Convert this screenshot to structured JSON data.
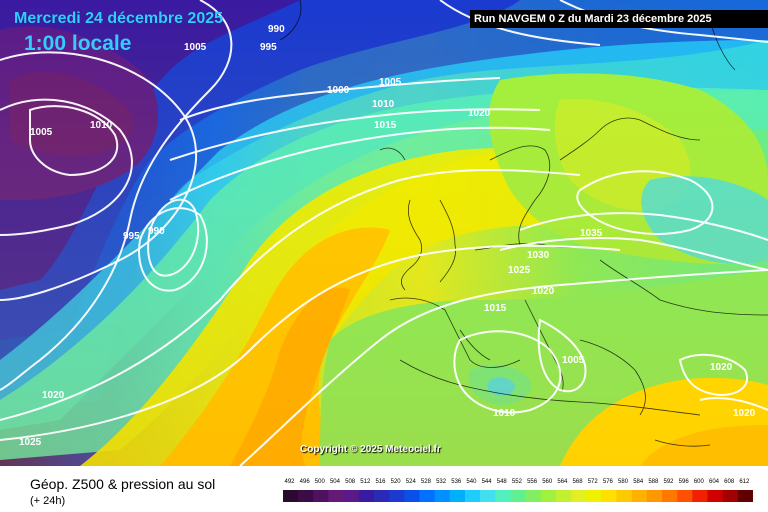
{
  "header": {
    "date": "Mercredi 24 décembre 2025",
    "local_time": "1:00 locale",
    "run": "Run NAVGEM 0 Z du Mardi 23 décembre 2025"
  },
  "map": {
    "copyright": "Copyright © 2025 Meteociel.fr",
    "isobar_labels": [
      {
        "name": "isobar-label-990-north",
        "text": "990"
      },
      {
        "name": "isobar-label-995-north",
        "text": "995"
      },
      {
        "name": "isobar-label-1005-north",
        "text": "1005"
      },
      {
        "name": "isobar-label-1005-greenland",
        "text": "1005"
      },
      {
        "name": "isobar-label-1010-greenland",
        "text": "1010"
      },
      {
        "name": "isobar-label-1000-atlantic",
        "text": "1000"
      },
      {
        "name": "isobar-label-1005-atlantic",
        "text": "1005"
      },
      {
        "name": "isobar-label-1010-atlantic",
        "text": "1010"
      },
      {
        "name": "isobar-label-1015-atlantic",
        "text": "1015"
      },
      {
        "name": "isobar-label-1020-norway",
        "text": "1020"
      },
      {
        "name": "isobar-label-995-low",
        "text": "995"
      },
      {
        "name": "isobar-label-990-low",
        "text": "990"
      },
      {
        "name": "isobar-label-1035-baltic",
        "text": "1035"
      },
      {
        "name": "isobar-label-1030-germany",
        "text": "1030"
      },
      {
        "name": "isobar-label-1025-france",
        "text": "1025"
      },
      {
        "name": "isobar-label-1020-alps",
        "text": "1020"
      },
      {
        "name": "isobar-label-1015-biscay",
        "text": "1015"
      },
      {
        "name": "isobar-label-1005-italy",
        "text": "1005"
      },
      {
        "name": "isobar-label-1010-africa",
        "text": "1010"
      },
      {
        "name": "isobar-label-1020-turkey",
        "text": "1020"
      },
      {
        "name": "isobar-label-1020-east",
        "text": "1020"
      },
      {
        "name": "isobar-label-1020-west",
        "text": "1020"
      },
      {
        "name": "isobar-label-1025-west",
        "text": "1025"
      }
    ]
  },
  "footer": {
    "title": "Géop. Z500 & pression au sol",
    "subtitle": "(+ 24h)",
    "scale_labels": [
      "492",
      "496",
      "500",
      "504",
      "508",
      "512",
      "516",
      "520",
      "524",
      "528",
      "532",
      "536",
      "540",
      "544",
      "548",
      "552",
      "556",
      "560",
      "564",
      "568",
      "572",
      "576",
      "580",
      "584",
      "588",
      "592",
      "596",
      "600",
      "604",
      "608",
      "612"
    ],
    "scale_colors": [
      "#2a0a2e",
      "#3d0c48",
      "#521060",
      "#661a78",
      "#5a1a8a",
      "#3a1aa0",
      "#2a2ab8",
      "#1a3ad0",
      "#0a50e8",
      "#0070ff",
      "#0090ff",
      "#00b0ff",
      "#20ccff",
      "#40e0f0",
      "#50f0c0",
      "#60f090",
      "#80f060",
      "#a0f040",
      "#c0f030",
      "#e0f020",
      "#f0f000",
      "#ffe000",
      "#ffc800",
      "#ffb000",
      "#ff9800",
      "#ff7800",
      "#ff5000",
      "#f02000",
      "#d00000",
      "#a00000",
      "#600000"
    ]
  }
}
